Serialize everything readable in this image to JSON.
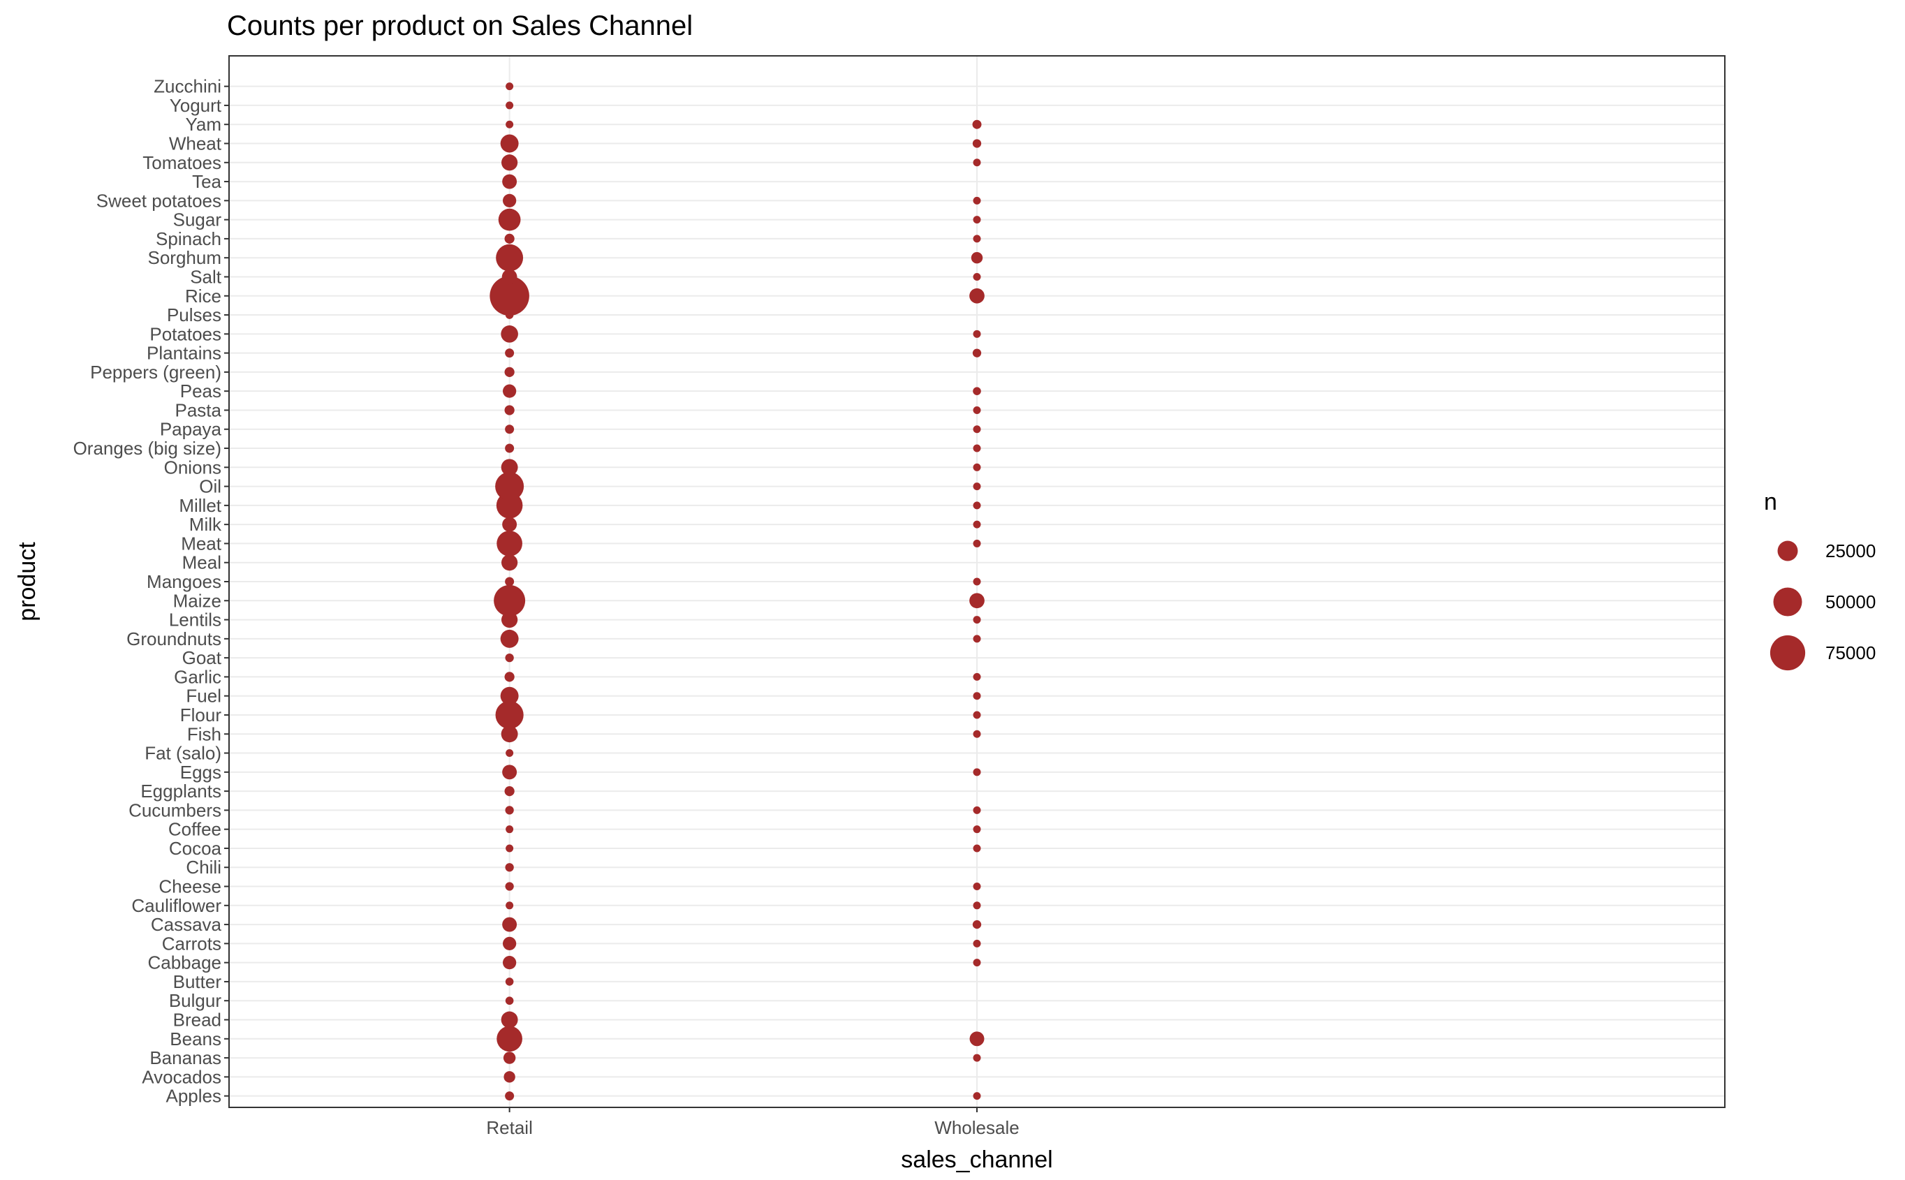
{
  "chart_data": {
    "type": "scatter",
    "title": "Counts per product on Sales Channel",
    "xlabel": "sales_channel",
    "ylabel": "product",
    "x_categories": [
      "Retail",
      "Wholesale"
    ],
    "y_categories": [
      "Apples",
      "Avocados",
      "Bananas",
      "Beans",
      "Bread",
      "Bulgur",
      "Butter",
      "Cabbage",
      "Carrots",
      "Cassava",
      "Cauliflower",
      "Cheese",
      "Chili",
      "Cocoa",
      "Coffee",
      "Cucumbers",
      "Eggplants",
      "Eggs",
      "Fat (salo)",
      "Fish",
      "Flour",
      "Fuel",
      "Garlic",
      "Goat",
      "Groundnuts",
      "Lentils",
      "Maize",
      "Mangoes",
      "Meal",
      "Meat",
      "Milk",
      "Millet",
      "Oil",
      "Onions",
      "Oranges (big size)",
      "Papaya",
      "Pasta",
      "Peas",
      "Peppers (green)",
      "Plantains",
      "Potatoes",
      "Pulses",
      "Rice",
      "Salt",
      "Sorghum",
      "Spinach",
      "Sugar",
      "Sweet potatoes",
      "Tea",
      "Tomatoes",
      "Wheat",
      "Yam",
      "Yogurt",
      "Zucchini"
    ],
    "size_variable": "n",
    "size_max": 100000,
    "legend": {
      "title": "n",
      "position": "right",
      "breaks": [
        25000,
        50000,
        75000
      ],
      "labels": [
        "25000",
        "50000",
        "75000"
      ]
    },
    "color": "#A52A2A",
    "grid": true,
    "points": [
      {
        "x": "Retail",
        "y": "Apples",
        "n": 5000
      },
      {
        "x": "Retail",
        "y": "Avocados",
        "n": 8000
      },
      {
        "x": "Retail",
        "y": "Bananas",
        "n": 9000
      },
      {
        "x": "Retail",
        "y": "Beans",
        "n": 40000
      },
      {
        "x": "Retail",
        "y": "Bread",
        "n": 17000
      },
      {
        "x": "Retail",
        "y": "Bulgur",
        "n": 4000
      },
      {
        "x": "Retail",
        "y": "Butter",
        "n": 4000
      },
      {
        "x": "Retail",
        "y": "Cabbage",
        "n": 11000
      },
      {
        "x": "Retail",
        "y": "Carrots",
        "n": 11000
      },
      {
        "x": "Retail",
        "y": "Cassava",
        "n": 13000
      },
      {
        "x": "Retail",
        "y": "Cauliflower",
        "n": 3000
      },
      {
        "x": "Retail",
        "y": "Cheese",
        "n": 4500
      },
      {
        "x": "Retail",
        "y": "Chili",
        "n": 4500
      },
      {
        "x": "Retail",
        "y": "Cocoa",
        "n": 3000
      },
      {
        "x": "Retail",
        "y": "Coffee",
        "n": 2500
      },
      {
        "x": "Retail",
        "y": "Cucumbers",
        "n": 4500
      },
      {
        "x": "Retail",
        "y": "Eggplants",
        "n": 6000
      },
      {
        "x": "Retail",
        "y": "Eggs",
        "n": 13000
      },
      {
        "x": "Retail",
        "y": "Fat (salo)",
        "n": 3500
      },
      {
        "x": "Retail",
        "y": "Fish",
        "n": 17000
      },
      {
        "x": "Retail",
        "y": "Flour",
        "n": 48000
      },
      {
        "x": "Retail",
        "y": "Fuel",
        "n": 20000
      },
      {
        "x": "Retail",
        "y": "Garlic",
        "n": 6000
      },
      {
        "x": "Retail",
        "y": "Goat",
        "n": 4500
      },
      {
        "x": "Retail",
        "y": "Groundnuts",
        "n": 20000
      },
      {
        "x": "Retail",
        "y": "Lentils",
        "n": 16000
      },
      {
        "x": "Retail",
        "y": "Maize",
        "n": 60000
      },
      {
        "x": "Retail",
        "y": "Mangoes",
        "n": 5000
      },
      {
        "x": "Retail",
        "y": "Meal",
        "n": 16000
      },
      {
        "x": "Retail",
        "y": "Meat",
        "n": 40000
      },
      {
        "x": "Retail",
        "y": "Milk",
        "n": 13000
      },
      {
        "x": "Retail",
        "y": "Millet",
        "n": 42000
      },
      {
        "x": "Retail",
        "y": "Oil",
        "n": 50000
      },
      {
        "x": "Retail",
        "y": "Onions",
        "n": 17000
      },
      {
        "x": "Retail",
        "y": "Oranges (big size)",
        "n": 5000
      },
      {
        "x": "Retail",
        "y": "Papaya",
        "n": 5000
      },
      {
        "x": "Retail",
        "y": "Pasta",
        "n": 6000
      },
      {
        "x": "Retail",
        "y": "Peas",
        "n": 11000
      },
      {
        "x": "Retail",
        "y": "Peppers (green)",
        "n": 6000
      },
      {
        "x": "Retail",
        "y": "Plantains",
        "n": 5000
      },
      {
        "x": "Retail",
        "y": "Potatoes",
        "n": 18000
      },
      {
        "x": "Retail",
        "y": "Pulses",
        "n": 4000
      },
      {
        "x": "Retail",
        "y": "Rice",
        "n": 95000
      },
      {
        "x": "Retail",
        "y": "Salt",
        "n": 14000
      },
      {
        "x": "Retail",
        "y": "Sorghum",
        "n": 45000
      },
      {
        "x": "Retail",
        "y": "Spinach",
        "n": 6000
      },
      {
        "x": "Retail",
        "y": "Sugar",
        "n": 30000
      },
      {
        "x": "Retail",
        "y": "Sweet potatoes",
        "n": 11000
      },
      {
        "x": "Retail",
        "y": "Tea",
        "n": 13000
      },
      {
        "x": "Retail",
        "y": "Tomatoes",
        "n": 16000
      },
      {
        "x": "Retail",
        "y": "Wheat",
        "n": 20000
      },
      {
        "x": "Retail",
        "y": "Yam",
        "n": 3000
      },
      {
        "x": "Retail",
        "y": "Yogurt",
        "n": 3000
      },
      {
        "x": "Retail",
        "y": "Zucchini",
        "n": 3500
      },
      {
        "x": "Wholesale",
        "y": "Apples",
        "n": 1500
      },
      {
        "x": "Wholesale",
        "y": "Bananas",
        "n": 2500
      },
      {
        "x": "Wholesale",
        "y": "Beans",
        "n": 13000
      },
      {
        "x": "Wholesale",
        "y": "Cabbage",
        "n": 3000
      },
      {
        "x": "Wholesale",
        "y": "Carrots",
        "n": 3500
      },
      {
        "x": "Wholesale",
        "y": "Cassava",
        "n": 4500
      },
      {
        "x": "Wholesale",
        "y": "Cauliflower",
        "n": 1500
      },
      {
        "x": "Wholesale",
        "y": "Cheese",
        "n": 1500
      },
      {
        "x": "Wholesale",
        "y": "Cocoa",
        "n": 1500
      },
      {
        "x": "Wholesale",
        "y": "Coffee",
        "n": 1500
      },
      {
        "x": "Wholesale",
        "y": "Cucumbers",
        "n": 1500
      },
      {
        "x": "Wholesale",
        "y": "Eggs",
        "n": 2500
      },
      {
        "x": "Wholesale",
        "y": "Fish",
        "n": 2000
      },
      {
        "x": "Wholesale",
        "y": "Flour",
        "n": 2500
      },
      {
        "x": "Wholesale",
        "y": "Fuel",
        "n": 1500
      },
      {
        "x": "Wholesale",
        "y": "Garlic",
        "n": 1500
      },
      {
        "x": "Wholesale",
        "y": "Groundnuts",
        "n": 3500
      },
      {
        "x": "Wholesale",
        "y": "Lentils",
        "n": 2500
      },
      {
        "x": "Wholesale",
        "y": "Maize",
        "n": 14000
      },
      {
        "x": "Wholesale",
        "y": "Mangoes",
        "n": 1500
      },
      {
        "x": "Wholesale",
        "y": "Meat",
        "n": 3000
      },
      {
        "x": "Wholesale",
        "y": "Milk",
        "n": 1500
      },
      {
        "x": "Wholesale",
        "y": "Millet",
        "n": 3500
      },
      {
        "x": "Wholesale",
        "y": "Oil",
        "n": 3000
      },
      {
        "x": "Wholesale",
        "y": "Onions",
        "n": 2500
      },
      {
        "x": "Wholesale",
        "y": "Oranges (big size)",
        "n": 1500
      },
      {
        "x": "Wholesale",
        "y": "Papaya",
        "n": 1500
      },
      {
        "x": "Wholesale",
        "y": "Pasta",
        "n": 1200
      },
      {
        "x": "Wholesale",
        "y": "Peas",
        "n": 4000
      },
      {
        "x": "Wholesale",
        "y": "Plantains",
        "n": 4500
      },
      {
        "x": "Wholesale",
        "y": "Potatoes",
        "n": 3500
      },
      {
        "x": "Wholesale",
        "y": "Rice",
        "n": 14000
      },
      {
        "x": "Wholesale",
        "y": "Salt",
        "n": 1000
      },
      {
        "x": "Wholesale",
        "y": "Sorghum",
        "n": 8000
      },
      {
        "x": "Wholesale",
        "y": "Spinach",
        "n": 2000
      },
      {
        "x": "Wholesale",
        "y": "Sugar",
        "n": 2500
      },
      {
        "x": "Wholesale",
        "y": "Sweet potatoes",
        "n": 1500
      },
      {
        "x": "Wholesale",
        "y": "Tomatoes",
        "n": 3000
      },
      {
        "x": "Wholesale",
        "y": "Wheat",
        "n": 4500
      },
      {
        "x": "Wholesale",
        "y": "Yam",
        "n": 5000
      }
    ]
  }
}
